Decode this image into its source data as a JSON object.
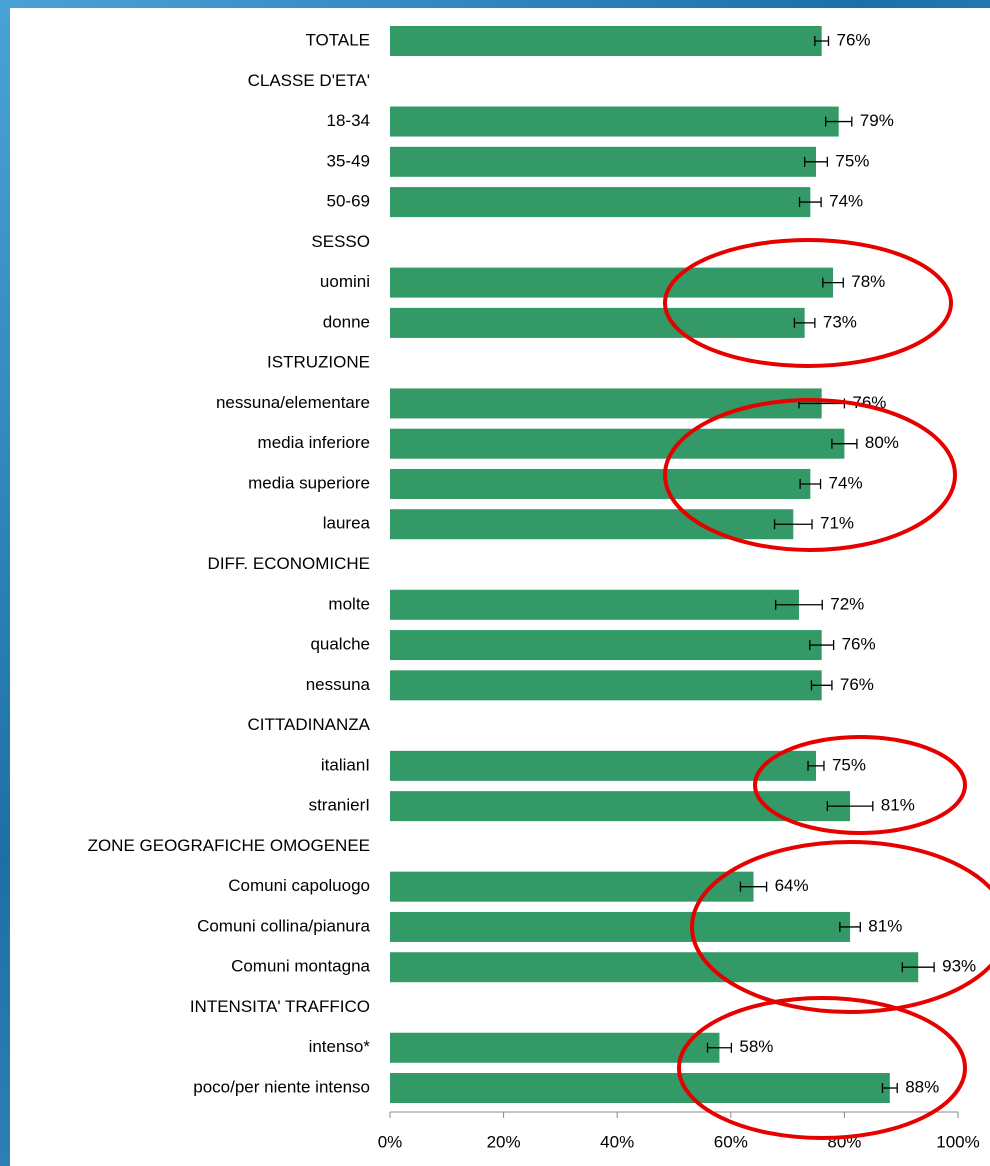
{
  "chart_data": {
    "type": "hbar_error",
    "categories": [
      "TOTALE",
      "CLASSE D'ETA'",
      "18-34",
      "35-49",
      "50-69",
      "SESSO",
      "uomini",
      "donne",
      "ISTRUZIONE",
      "nessuna/elementare",
      "media inferiore",
      "media superiore",
      "laurea",
      "DIFF. ECONOMICHE",
      "molte",
      "qualche",
      "nessuna",
      "CITTADINANZA",
      "italianI",
      "stranierI",
      "ZONE GEOGRAFICHE OMOGENEE",
      "Comuni capoluogo",
      "Comuni collina/pianura",
      "Comuni montagna",
      "INTENSITA' TRAFFICO",
      "intenso*",
      "poco/per niente intenso"
    ],
    "values": [
      76,
      null,
      79,
      75,
      74,
      null,
      78,
      73,
      null,
      76,
      80,
      74,
      71,
      null,
      72,
      76,
      76,
      null,
      75,
      81,
      null,
      64,
      81,
      93,
      null,
      58,
      88
    ],
    "value_labels": [
      "76%",
      null,
      "79%",
      "75%",
      "74%",
      null,
      "78%",
      "73%",
      null,
      "76%",
      "80%",
      "74%",
      "71%",
      null,
      "72%",
      "76%",
      "76%",
      null,
      "75%",
      "81%",
      null,
      "64%",
      "81%",
      "93%",
      null,
      "58%",
      "88%"
    ],
    "errors": [
      1.2,
      null,
      2.3,
      2,
      1.9,
      null,
      1.8,
      1.8,
      null,
      4,
      2.2,
      1.8,
      3.3,
      null,
      4.1,
      2.1,
      1.8,
      null,
      1.4,
      4,
      null,
      2.3,
      1.8,
      2.8,
      null,
      2.1,
      1.3
    ],
    "color": "#339966",
    "xlim": [
      0,
      100
    ],
    "xticks": [
      {
        "value": 0,
        "label": "0%"
      },
      {
        "value": 20,
        "label": "20%"
      },
      {
        "value": 40,
        "label": "40%"
      },
      {
        "value": 60,
        "label": "60%"
      },
      {
        "value": 80,
        "label": "80%"
      },
      {
        "value": 100,
        "label": "100%"
      }
    ]
  }
}
